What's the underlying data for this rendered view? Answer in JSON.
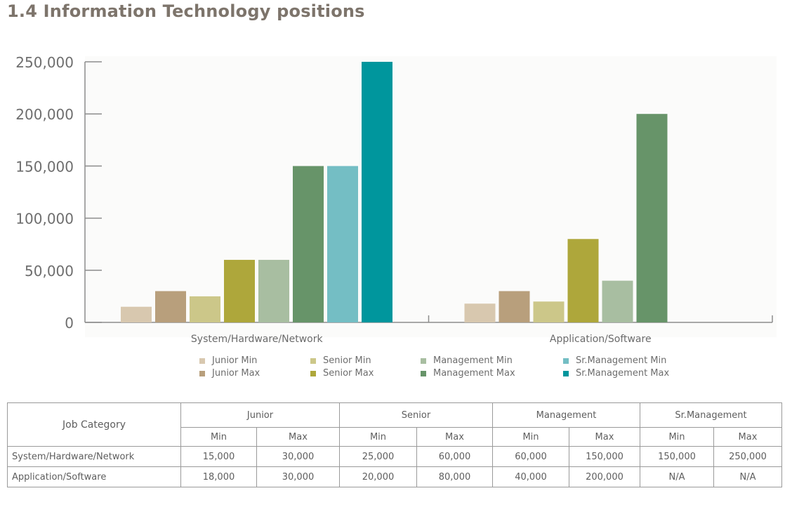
{
  "title": "1.4 Information Technology positions",
  "chart_data": {
    "type": "bar",
    "categories": [
      "System/Hardware/Network",
      "Application/Software"
    ],
    "ylim": [
      0,
      250000
    ],
    "yticks": [
      "0",
      "50,000",
      "100,000",
      "150,000",
      "200,000",
      "250,000"
    ],
    "ytick_values": [
      0,
      50000,
      100000,
      150000,
      200000,
      250000
    ],
    "series": [
      {
        "name": "Junior Min",
        "color": "#d8c8af",
        "values": [
          15000,
          18000
        ]
      },
      {
        "name": "Junior Max",
        "color": "#b89f7c",
        "values": [
          30000,
          30000
        ]
      },
      {
        "name": "Senior Min",
        "color": "#ccc789",
        "values": [
          25000,
          20000
        ]
      },
      {
        "name": "Senior Max",
        "color": "#aea73b",
        "values": [
          60000,
          80000
        ]
      },
      {
        "name": "Management Min",
        "color": "#a8bea1",
        "values": [
          60000,
          40000
        ]
      },
      {
        "name": "Management Max",
        "color": "#679469",
        "values": [
          150000,
          200000
        ]
      },
      {
        "name": "Sr.Management Min",
        "color": "#74bec4",
        "values": [
          150000,
          null
        ]
      },
      {
        "name": "Sr.Management Max",
        "color": "#00969d",
        "values": [
          250000,
          null
        ]
      }
    ],
    "legend_placement": "bottom"
  },
  "table": {
    "job_category": "Job Category",
    "groups": [
      "Junior",
      "Senior",
      "Management",
      "Sr.Management"
    ],
    "min_label": "Min",
    "max_label": "Max",
    "rows": [
      {
        "category": "System/Hardware/Network",
        "values": [
          "15,000",
          "30,000",
          "25,000",
          "60,000",
          "60,000",
          "150,000",
          "150,000",
          "250,000"
        ]
      },
      {
        "category": "Application/Software",
        "values": [
          "18,000",
          "30,000",
          "20,000",
          "80,000",
          "40,000",
          "200,000",
          "N/A",
          "N/A"
        ]
      }
    ]
  }
}
